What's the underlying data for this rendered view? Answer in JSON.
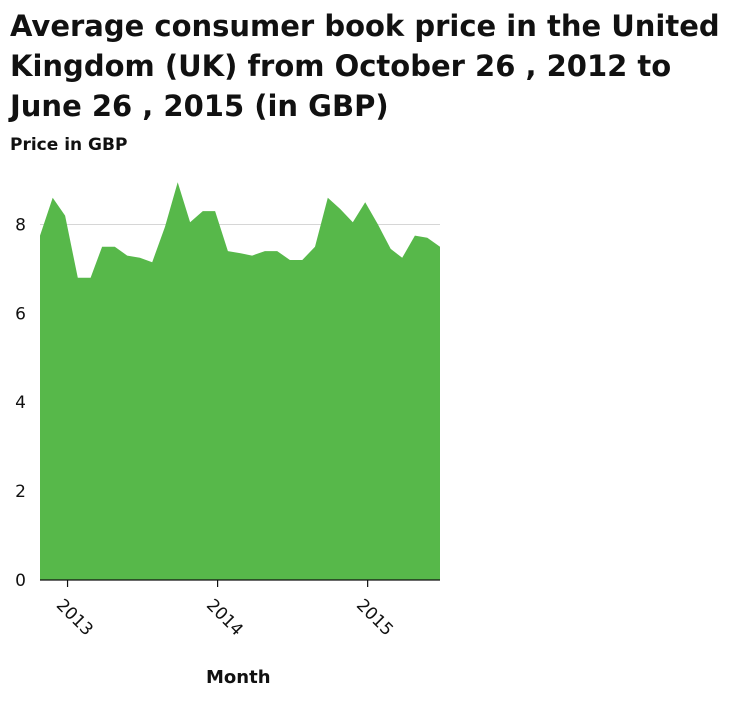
{
  "chart_data": {
    "type": "area",
    "title": "Average consumer book price in the United Kingdom (UK) from October 26 , 2012 to June 26 , 2015 (in GBP)",
    "ylabel": "Price in GBP",
    "xlabel": "Month",
    "ylim": [
      0,
      9
    ],
    "xlim": [
      "2012-10-26",
      "2015-06-26"
    ],
    "yticks": [
      "0",
      "2",
      "4",
      "6",
      "8"
    ],
    "xticks": [
      {
        "label": "2013",
        "date": "2013-01-01"
      },
      {
        "label": "2014",
        "date": "2014-01-01"
      },
      {
        "label": "2015",
        "date": "2015-01-01"
      }
    ],
    "grid": "horizontal",
    "color": "#57b84a",
    "series": [
      {
        "x": [
          "2012-10-26",
          "2012-11-26",
          "2012-12-26",
          "2013-01-26",
          "2013-02-26",
          "2013-03-26",
          "2013-04-26",
          "2013-05-26",
          "2013-06-26",
          "2013-07-26",
          "2013-08-26",
          "2013-09-26",
          "2013-10-26",
          "2013-11-26",
          "2013-12-26",
          "2014-01-26",
          "2014-02-26",
          "2014-03-26",
          "2014-04-26",
          "2014-05-26",
          "2014-06-26",
          "2014-07-26",
          "2014-08-26",
          "2014-09-26",
          "2014-10-26",
          "2014-11-26",
          "2014-12-26",
          "2015-01-26",
          "2015-02-26",
          "2015-03-26",
          "2015-04-26",
          "2015-05-26",
          "2015-06-26"
        ],
        "values": [
          7.75,
          8.6,
          8.2,
          6.8,
          6.8,
          7.5,
          7.5,
          7.3,
          7.25,
          7.15,
          7.95,
          8.95,
          8.05,
          8.3,
          8.3,
          7.4,
          7.35,
          7.3,
          7.4,
          7.4,
          7.2,
          7.2,
          7.5,
          8.6,
          8.35,
          8.05,
          8.5,
          8.0,
          7.45,
          7.25,
          7.75,
          7.7,
          7.5
        ]
      }
    ]
  }
}
